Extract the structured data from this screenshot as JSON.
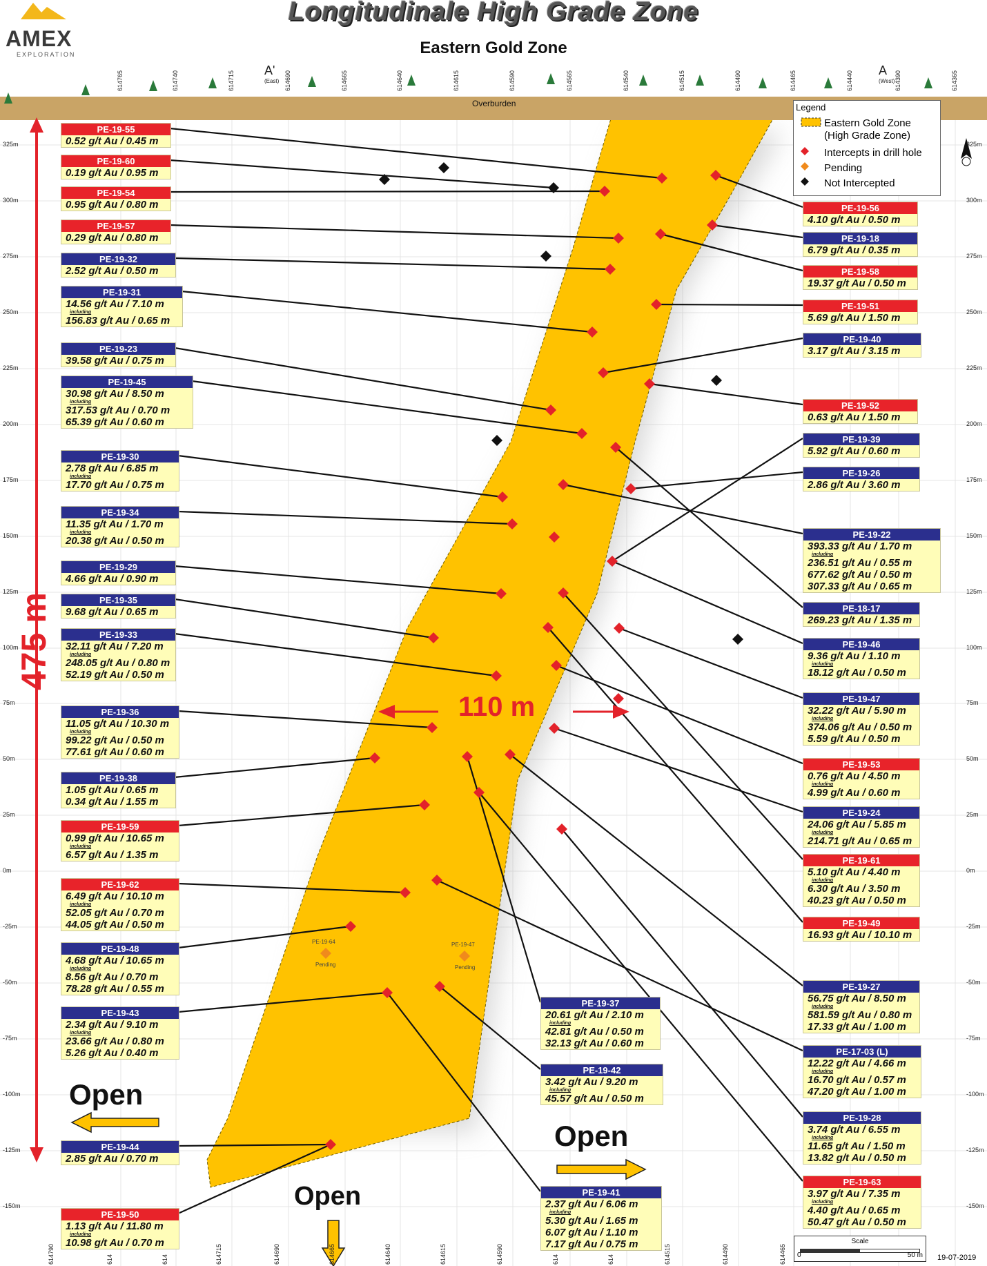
{
  "title": "Longitudinale High Grade Zone",
  "subtitle": "Eastern Gold Zone",
  "logo": {
    "name": "AMEX",
    "tagline": "EXPLORATION"
  },
  "overburden_label": "Overburden",
  "section_labels": {
    "a_prime": "A'",
    "a_prime_sub": "(East)",
    "a": "A",
    "a_sub": "(West)"
  },
  "eastings_top": [
    "614765",
    "614740",
    "614715",
    "614690",
    "614665",
    "614640",
    "614615",
    "614590",
    "614565",
    "614540",
    "614515",
    "614490",
    "614465",
    "614440",
    "614390",
    "614365"
  ],
  "eastings_bottom": [
    "614790",
    "614",
    "614",
    "614715",
    "614690",
    "614665",
    "614640",
    "614615",
    "614590",
    "614",
    "614",
    "614515",
    "614490",
    "614465"
  ],
  "elevations": [
    "325m",
    "300m",
    "275m",
    "250m",
    "225m",
    "200m",
    "175m",
    "150m",
    "125m",
    "100m",
    "75m",
    "50m",
    "25m",
    "0m",
    "-25m",
    "-50m",
    "-75m",
    "-100m",
    "-125m",
    "-150m"
  ],
  "legend": {
    "title": "Legend",
    "items": [
      {
        "label": "Eastern Gold Zone\n(High Grade Zone)",
        "symbol": "zone",
        "color": "#ffc200"
      },
      {
        "label": "Intercepts in drill hole",
        "symbol": "diamond",
        "color": "#e3222a"
      },
      {
        "label": "Pending",
        "symbol": "diamond",
        "color": "#f08a1c"
      },
      {
        "label": "Not Intercepted",
        "symbol": "diamond",
        "color": "#111111"
      }
    ]
  },
  "vertical_extent_label": "475 m",
  "width_label": "110 m",
  "open_labels": [
    "Open",
    "Open",
    "Open"
  ],
  "pending_holes": [
    {
      "hole": "PE-19-64",
      "status": "Pending"
    },
    {
      "hole": "PE-19-47",
      "status": "Pending"
    }
  ],
  "scale": {
    "title": "Scale",
    "start": "0",
    "end": "50 m"
  },
  "date": "19-07-2019",
  "drill_holes_left": [
    {
      "hole": "PE-19-55",
      "color": "red",
      "lines": [
        "0.52 g/t Au / 0.45 m"
      ]
    },
    {
      "hole": "PE-19-60",
      "color": "red",
      "lines": [
        "0.19 g/t Au / 0.95 m"
      ]
    },
    {
      "hole": "PE-19-54",
      "color": "red",
      "lines": [
        "0.95 g/t Au / 0.80 m"
      ]
    },
    {
      "hole": "PE-19-57",
      "color": "red",
      "lines": [
        "0.29 g/t Au / 0.80 m"
      ]
    },
    {
      "hole": "PE-19-32",
      "color": "blue",
      "lines": [
        "2.52 g/t Au / 0.50 m"
      ]
    },
    {
      "hole": "PE-19-31",
      "color": "blue",
      "lines": [
        "14.56 g/t Au / 7.10 m",
        "including",
        "156.83 g/t Au / 0.65 m"
      ]
    },
    {
      "hole": "PE-19-23",
      "color": "blue",
      "lines": [
        "39.58 g/t Au / 0.75 m"
      ]
    },
    {
      "hole": "PE-19-45",
      "color": "blue",
      "lines": [
        "30.98 g/t Au / 8.50 m",
        "including",
        "317.53 g/t Au / 0.70 m",
        "65.39 g/t Au / 0.60 m"
      ]
    },
    {
      "hole": "PE-19-30",
      "color": "blue",
      "lines": [
        "2.78 g/t Au / 6.85 m",
        "including",
        "17.70 g/t Au / 0.75 m"
      ]
    },
    {
      "hole": "PE-19-34",
      "color": "blue",
      "lines": [
        "11.35 g/t Au / 1.70 m",
        "including",
        "20.38 g/t Au / 0.50 m"
      ]
    },
    {
      "hole": "PE-19-29",
      "color": "blue",
      "lines": [
        "4.66 g/t Au / 0.90 m"
      ]
    },
    {
      "hole": "PE-19-35",
      "color": "blue",
      "lines": [
        "9.68 g/t Au / 0.65 m"
      ]
    },
    {
      "hole": "PE-19-33",
      "color": "blue",
      "lines": [
        "32.11 g/t Au / 7.20 m",
        "including",
        "248.05 g/t Au / 0.80 m",
        "52.19 g/t Au / 0.50 m"
      ]
    },
    {
      "hole": "PE-19-36",
      "color": "blue",
      "lines": [
        "11.05 g/t Au / 10.30 m",
        "including",
        "99.22 g/t Au / 0.50 m",
        "77.61 g/t Au / 0.60 m"
      ]
    },
    {
      "hole": "PE-19-38",
      "color": "blue",
      "lines": [
        "1.05 g/t Au / 0.65 m",
        "0.34 g/t Au / 1.55 m"
      ]
    },
    {
      "hole": "PE-19-59",
      "color": "red",
      "lines": [
        "0.99 g/t Au / 10.65 m",
        "including",
        "6.57 g/t Au / 1.35 m"
      ]
    },
    {
      "hole": "PE-19-62",
      "color": "red",
      "lines": [
        "6.49 g/t Au / 10.10 m",
        "including",
        "52.05 g/t Au / 0.70 m",
        "44.05 g/t Au / 0.50 m"
      ]
    },
    {
      "hole": "PE-19-48",
      "color": "blue",
      "lines": [
        "4.68 g/t Au / 10.65 m",
        "including",
        "8.56 g/t Au / 0.70 m",
        "78.28 g/t Au / 0.55 m"
      ]
    },
    {
      "hole": "PE-19-43",
      "color": "blue",
      "lines": [
        "2.34 g/t Au / 9.10 m",
        "including",
        "23.66 g/t Au / 0.80 m",
        "5.26 g/t Au / 0.40 m"
      ]
    },
    {
      "hole": "PE-19-44",
      "color": "blue",
      "lines": [
        "2.85 g/t Au / 0.70 m"
      ]
    },
    {
      "hole": "PE-19-50",
      "color": "red",
      "lines": [
        "1.13 g/t Au / 11.80 m",
        "including",
        "10.98 g/t Au / 0.70 m"
      ]
    }
  ],
  "drill_holes_right": [
    {
      "hole": "PE-19-56",
      "color": "red",
      "lines": [
        "4.10 g/t Au / 0.50 m"
      ]
    },
    {
      "hole": "PE-19-18",
      "color": "blue",
      "lines": [
        "6.79 g/t Au / 0.35 m"
      ]
    },
    {
      "hole": "PE-19-58",
      "color": "red",
      "lines": [
        "19.37 g/t Au / 0.50 m"
      ]
    },
    {
      "hole": "PE-19-51",
      "color": "red",
      "lines": [
        "5.69 g/t Au / 1.50 m"
      ]
    },
    {
      "hole": "PE-19-40",
      "color": "blue",
      "lines": [
        "3.17 g/t Au / 3.15 m"
      ]
    },
    {
      "hole": "PE-19-52",
      "color": "red",
      "lines": [
        "0.63 g/t Au / 1.50 m"
      ]
    },
    {
      "hole": "PE-19-39",
      "color": "blue",
      "lines": [
        "5.92 g/t Au / 0.60 m"
      ]
    },
    {
      "hole": "PE-19-26",
      "color": "blue",
      "lines": [
        "2.86 g/t Au / 3.60 m"
      ]
    },
    {
      "hole": "PE-19-22",
      "color": "blue",
      "lines": [
        "393.33 g/t Au / 1.70 m",
        "including",
        "236.51 g/t Au / 0.55 m",
        "677.62 g/t Au / 0.50 m",
        "307.33 g/t Au / 0.65 m"
      ]
    },
    {
      "hole": "PE-18-17",
      "color": "blue",
      "lines": [
        "269.23 g/t Au / 1.35 m"
      ]
    },
    {
      "hole": "PE-19-46",
      "color": "blue",
      "lines": [
        "9.36 g/t Au / 1.10 m",
        "including",
        "18.12 g/t Au / 0.50 m"
      ]
    },
    {
      "hole": "PE-19-47",
      "color": "blue",
      "lines": [
        "32.22 g/t Au / 5.90 m",
        "including",
        "374.06 g/t Au / 0.50 m",
        "5.59 g/t Au / 0.50 m"
      ]
    },
    {
      "hole": "PE-19-53",
      "color": "red",
      "lines": [
        "0.76 g/t Au / 4.50 m",
        "including",
        "4.99 g/t Au / 0.60 m"
      ]
    },
    {
      "hole": "PE-19-24",
      "color": "blue",
      "lines": [
        "24.06 g/t Au / 5.85 m",
        "including",
        "214.71 g/t Au / 0.65 m"
      ]
    },
    {
      "hole": "PE-19-61",
      "color": "red",
      "lines": [
        "5.10 g/t Au / 4.40 m",
        "including",
        "6.30 g/t Au / 3.50 m",
        "40.23 g/t Au / 0.50 m"
      ]
    },
    {
      "hole": "PE-19-49",
      "color": "red",
      "lines": [
        "16.93 g/t Au / 10.10 m"
      ]
    },
    {
      "hole": "PE-19-27",
      "color": "blue",
      "lines": [
        "56.75 g/t Au / 8.50 m",
        "including",
        "581.59 g/t Au / 0.80 m",
        "17.33 g/t Au / 1.00 m"
      ]
    },
    {
      "hole": "PE-17-03 (L)",
      "color": "blue",
      "lines": [
        "12.22 g/t Au / 4.66 m",
        "including",
        "16.70 g/t Au / 0.57 m",
        "47.20 g/t Au / 1.00 m"
      ]
    },
    {
      "hole": "PE-19-28",
      "color": "blue",
      "lines": [
        "3.74 g/t Au / 6.55 m",
        "including",
        "11.65 g/t Au / 1.50 m",
        "13.82 g/t Au / 0.50 m"
      ]
    },
    {
      "hole": "PE-19-63",
      "color": "red",
      "lines": [
        "3.97 g/t Au / 7.35 m",
        "including",
        "4.40 g/t Au / 0.65 m",
        "50.47 g/t Au / 0.50 m"
      ]
    }
  ],
  "drill_holes_center": [
    {
      "hole": "PE-19-37",
      "color": "blue",
      "lines": [
        "20.61 g/t Au / 2.10 m",
        "including",
        "42.81 g/t Au / 0.50 m",
        "32.13 g/t Au / 0.60 m"
      ]
    },
    {
      "hole": "PE-19-42",
      "color": "blue",
      "lines": [
        "3.42 g/t Au / 9.20 m",
        "including",
        "45.57 g/t Au / 0.50 m"
      ]
    },
    {
      "hole": "PE-19-41",
      "color": "blue",
      "lines": [
        "2.37 g/t Au / 6.06 m",
        "including",
        "5.30 g/t Au / 1.65 m",
        "6.07 g/t Au / 1.10 m",
        "7.17 g/t Au / 0.75 m"
      ]
    }
  ]
}
